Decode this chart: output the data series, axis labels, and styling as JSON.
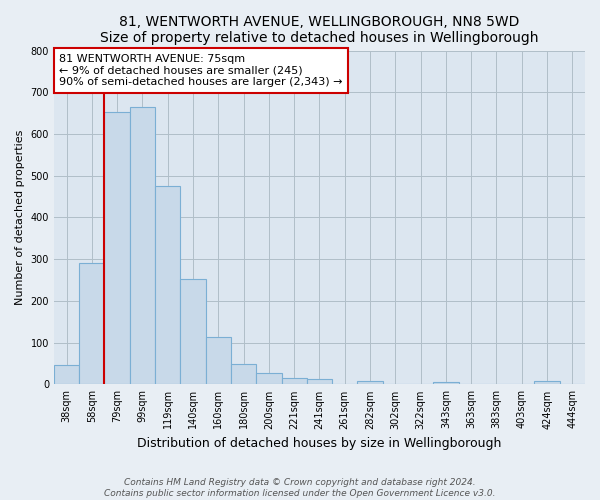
{
  "title": "81, WENTWORTH AVENUE, WELLINGBOROUGH, NN8 5WD",
  "subtitle": "Size of property relative to detached houses in Wellingborough",
  "xlabel": "Distribution of detached houses by size in Wellingborough",
  "ylabel": "Number of detached properties",
  "bar_labels": [
    "38sqm",
    "58sqm",
    "79sqm",
    "99sqm",
    "119sqm",
    "140sqm",
    "160sqm",
    "180sqm",
    "200sqm",
    "221sqm",
    "241sqm",
    "261sqm",
    "282sqm",
    "302sqm",
    "322sqm",
    "343sqm",
    "363sqm",
    "383sqm",
    "403sqm",
    "424sqm",
    "444sqm"
  ],
  "bar_values": [
    47,
    290,
    653,
    665,
    476,
    253,
    113,
    48,
    28,
    15,
    13,
    0,
    8,
    0,
    0,
    7,
    0,
    0,
    0,
    8,
    0
  ],
  "bar_color": "#c8d9e9",
  "bar_edge_color": "#7bafd4",
  "vline_color": "#cc0000",
  "annotation_text": "81 WENTWORTH AVENUE: 75sqm\n← 9% of detached houses are smaller (245)\n90% of semi-detached houses are larger (2,343) →",
  "annotation_box_edge": "#cc0000",
  "ylim": [
    0,
    800
  ],
  "yticks": [
    0,
    100,
    200,
    300,
    400,
    500,
    600,
    700,
    800
  ],
  "footer_line1": "Contains HM Land Registry data © Crown copyright and database right 2024.",
  "footer_line2": "Contains public sector information licensed under the Open Government Licence v3.0.",
  "bg_color": "#e8eef4",
  "plot_bg_color": "#dce6f0",
  "title_fontsize": 10,
  "xlabel_fontsize": 9,
  "ylabel_fontsize": 8,
  "tick_fontsize": 7,
  "footer_fontsize": 6.5,
  "annotation_fontsize": 8,
  "grid_color": "#b0bec8"
}
